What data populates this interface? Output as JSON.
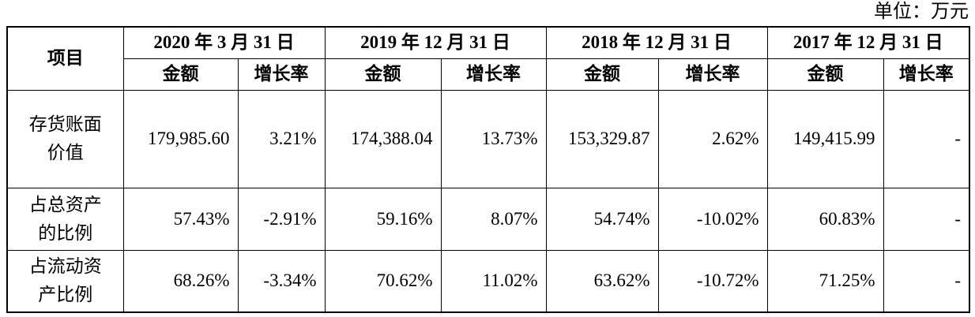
{
  "header": {
    "unit": "单位：万元"
  },
  "table": {
    "stub": "项目",
    "periods": [
      {
        "label": "2020 年 3 月 31 日",
        "sub": [
          "金额",
          "增长率"
        ]
      },
      {
        "label": "2019 年 12 月 31 日",
        "sub": [
          "金额",
          "增长率"
        ]
      },
      {
        "label": "2018 年 12 月 31 日",
        "sub": [
          "金额",
          "增长率"
        ]
      },
      {
        "label": "2017 年 12 月 31 日",
        "sub": [
          "金额",
          "增长率"
        ]
      }
    ],
    "rows": [
      {
        "label": [
          "存货账面",
          "价值"
        ],
        "cells": [
          "179,985.60",
          "3.21%",
          "174,388.04",
          "13.73%",
          "153,329.87",
          "2.62%",
          "149,415.99",
          "-"
        ]
      },
      {
        "label": [
          "占总资产",
          "的比例"
        ],
        "cells": [
          "57.43%",
          "-2.91%",
          "59.16%",
          "8.07%",
          "54.74%",
          "-10.02%",
          "60.83%",
          "-"
        ]
      },
      {
        "label": [
          "占流动资",
          "产比例"
        ],
        "cells": [
          "68.26%",
          "-3.34%",
          "70.62%",
          "11.02%",
          "63.62%",
          "-10.72%",
          "71.25%",
          "-"
        ]
      }
    ]
  }
}
